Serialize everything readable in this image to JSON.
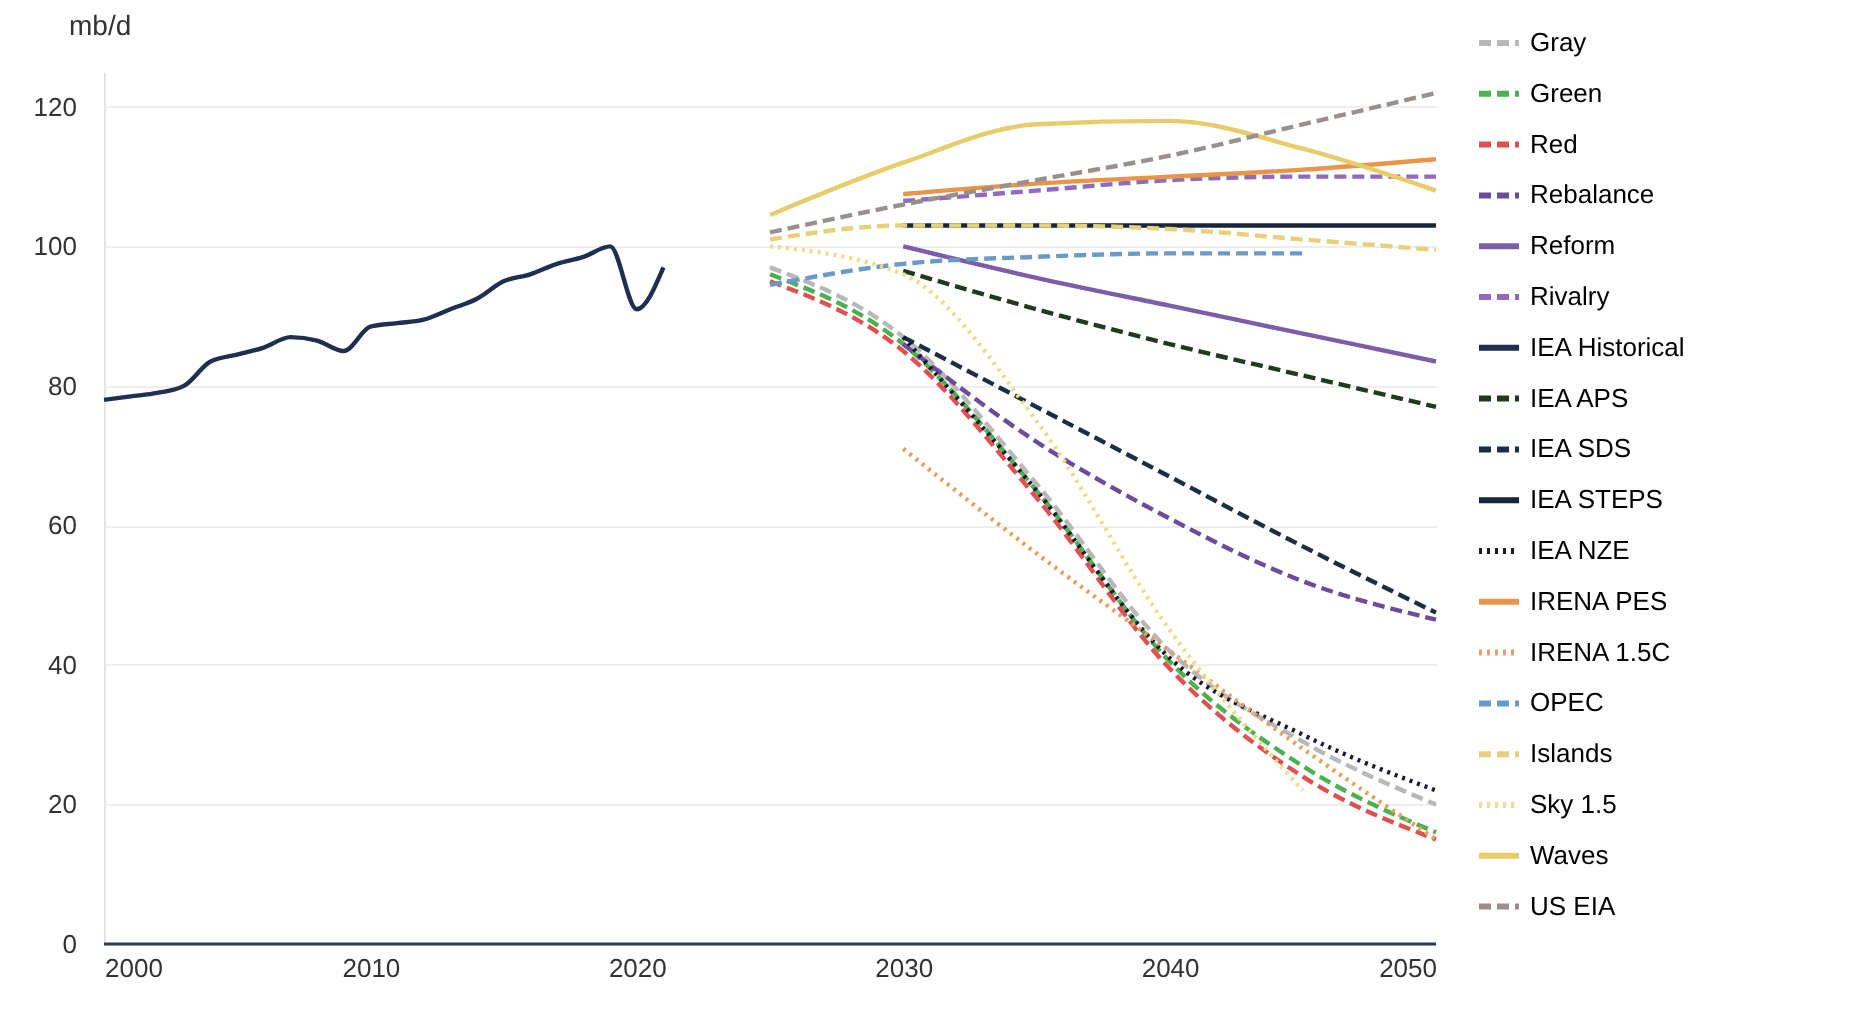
{
  "chart_data": {
    "type": "line",
    "ylabel": "mb/d",
    "xlim": [
      2000,
      2050
    ],
    "xticks": [
      2000,
      2010,
      2020,
      2030,
      2040,
      2050
    ],
    "ylim": [
      0,
      125
    ],
    "yticks": [
      0,
      20,
      40,
      60,
      80,
      100,
      120
    ],
    "grid": "y",
    "legend": "right",
    "series": [
      {
        "name": "Gray",
        "color": "#b8b8b8",
        "line_style": "dashed",
        "x": [
          2025,
          2030,
          2035,
          2040,
          2045,
          2050
        ],
        "values": [
          97,
          87,
          66,
          42,
          29,
          20
        ]
      },
      {
        "name": "Green",
        "color": "#4caf50",
        "line_style": "dashed",
        "x": [
          2025,
          2030,
          2035,
          2040,
          2045,
          2050
        ],
        "values": [
          96,
          86,
          65,
          40.5,
          25.5,
          16
        ]
      },
      {
        "name": "Red",
        "color": "#e05050",
        "line_style": "dashed",
        "x": [
          2025,
          2030,
          2035,
          2040,
          2045,
          2050
        ],
        "values": [
          95,
          85,
          64,
          39.5,
          24,
          15
        ]
      },
      {
        "name": "Rebalance",
        "color": "#6a4c9c",
        "line_style": "dashed",
        "x": [
          2030,
          2035,
          2040,
          2045,
          2050
        ],
        "values": [
          86,
          72,
          61,
          52,
          46.5
        ]
      },
      {
        "name": "Reform",
        "color": "#7b5ea7",
        "line_style": "solid",
        "x": [
          2030,
          2035,
          2040,
          2045,
          2050
        ],
        "values": [
          100,
          95.5,
          91.5,
          87.5,
          83.5
        ]
      },
      {
        "name": "Rivalry",
        "color": "#8e6bbf",
        "line_style": "dashed",
        "x": [
          2030,
          2035,
          2040,
          2045,
          2050
        ],
        "values": [
          106.5,
          108,
          109.5,
          110,
          110
        ]
      },
      {
        "name": "IEA Historical",
        "color": "#1f2f50",
        "line_style": "solid",
        "x": [
          2000,
          2001,
          2002,
          2003,
          2004,
          2005,
          2006,
          2007,
          2008,
          2009,
          2010,
          2011,
          2012,
          2013,
          2014,
          2015,
          2016,
          2017,
          2018,
          2019,
          2020,
          2021
        ],
        "values": [
          78,
          78.5,
          79,
          80,
          83.5,
          84.5,
          85.5,
          87,
          86.5,
          85,
          88.5,
          89,
          89.5,
          91,
          92.5,
          95,
          96,
          97.5,
          98.5,
          100,
          91,
          97
        ]
      },
      {
        "name": "IEA APS",
        "color": "#1f3a1f",
        "line_style": "dashed",
        "x": [
          2030,
          2035,
          2040,
          2045,
          2050
        ],
        "values": [
          96.5,
          91,
          86,
          81.5,
          77
        ]
      },
      {
        "name": "IEA SDS",
        "color": "#1c2e45",
        "line_style": "dashed",
        "x": [
          2030,
          2035,
          2040,
          2045,
          2050
        ],
        "values": [
          87,
          77,
          67,
          57,
          47.5
        ]
      },
      {
        "name": "IEA STEPS",
        "color": "#16263d",
        "line_style": "solid",
        "x": [
          2030,
          2035,
          2040,
          2045,
          2050
        ],
        "values": [
          103,
          103,
          103,
          103,
          103
        ]
      },
      {
        "name": "IEA NZE",
        "color": "#1a1a2e",
        "line_style": "dotted",
        "x": [
          2030,
          2035,
          2040,
          2045,
          2050
        ],
        "values": [
          87,
          65,
          41,
          30,
          22
        ]
      },
      {
        "name": "IRENA PES",
        "color": "#e8954a",
        "line_style": "solid",
        "x": [
          2030,
          2035,
          2040,
          2045,
          2050
        ],
        "values": [
          107.5,
          109,
          110,
          111,
          112.5
        ]
      },
      {
        "name": "IRENA 1.5C",
        "color": "#e8a060",
        "line_style": "dotted",
        "x": [
          2030,
          2035,
          2040,
          2045,
          2050
        ],
        "values": [
          71,
          56,
          42,
          28,
          15
        ]
      },
      {
        "name": "OPEC",
        "color": "#6a9ac8",
        "line_style": "dashed",
        "x": [
          2025,
          2030,
          2035,
          2040,
          2045
        ],
        "values": [
          94.5,
          97.5,
          98.5,
          99,
          99
        ]
      },
      {
        "name": "Islands",
        "color": "#e8cf7a",
        "line_style": "dashed",
        "x": [
          2025,
          2030,
          2035,
          2040,
          2045,
          2050
        ],
        "values": [
          101,
          103,
          103,
          102.5,
          101,
          99.5
        ]
      },
      {
        "name": "Sky 1.5",
        "color": "#eedc8a",
        "line_style": "dotted",
        "x": [
          2025,
          2030,
          2035,
          2040,
          2045
        ],
        "values": [
          100,
          96,
          75,
          45,
          22
        ]
      },
      {
        "name": "Waves",
        "color": "#e8cc6a",
        "line_style": "solid",
        "x": [
          2025,
          2030,
          2035,
          2040,
          2045,
          2050
        ],
        "values": [
          104.5,
          112,
          117.5,
          118,
          114,
          108
        ]
      },
      {
        "name": "US EIA",
        "color": "#9a8f8f",
        "line_style": "dashed",
        "x": [
          2025,
          2030,
          2035,
          2040,
          2045,
          2050
        ],
        "values": [
          102,
          106,
          109.5,
          113,
          117.5,
          122
        ]
      }
    ]
  }
}
